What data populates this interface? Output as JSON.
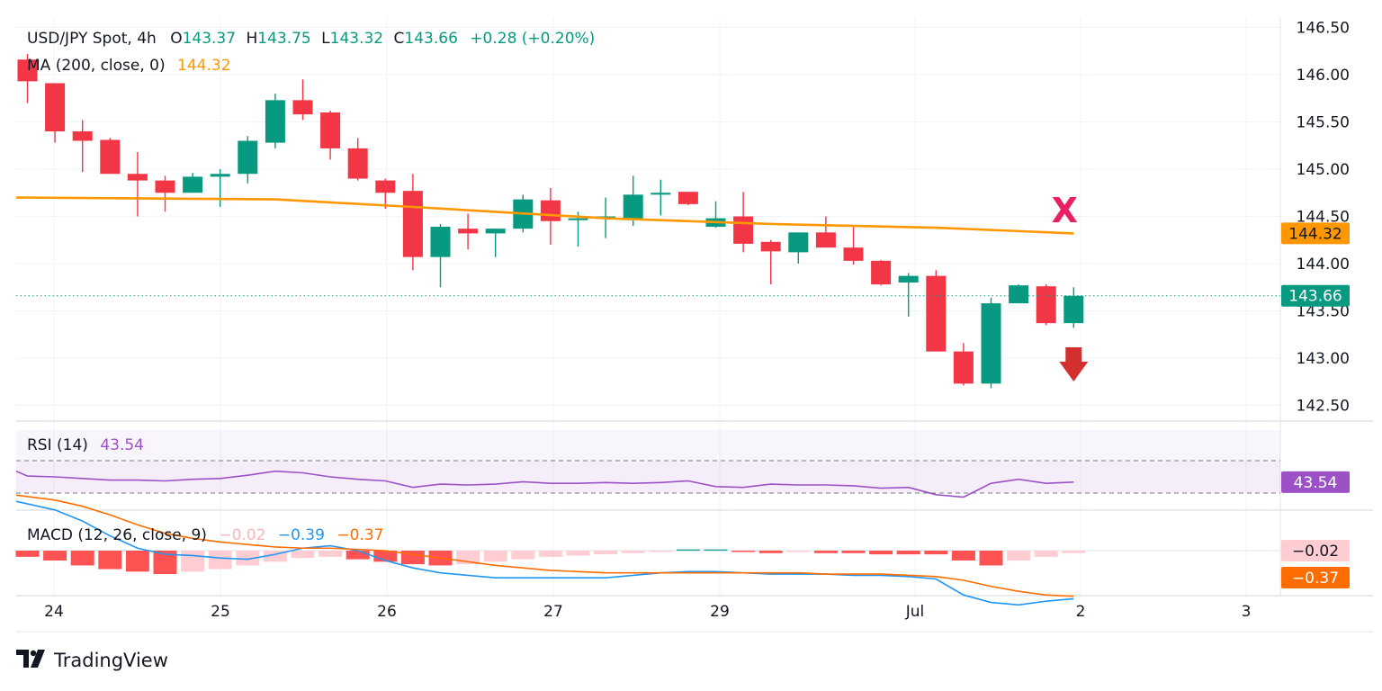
{
  "header": {
    "symbol": "USD/JPY Spot, 4h",
    "o_label": "O",
    "o_value": "143.37",
    "h_label": "H",
    "h_value": "143.75",
    "l_label": "L",
    "l_value": "143.32",
    "c_label": "C",
    "c_value": "143.66",
    "change": "+0.28 (+0.20%)"
  },
  "ma_legend": {
    "label": "MA (200, close, 0)",
    "value": "144.32"
  },
  "rsi_legend": {
    "label": "RSI (14)",
    "value": "43.54"
  },
  "macd_legend": {
    "label": "MACD (12, 26, close, 9)",
    "hist": "−0.02",
    "macd": "−0.39",
    "signal": "−0.37"
  },
  "footer": {
    "brand": "TradingView"
  },
  "colors": {
    "up": "#089981",
    "down": "#f23645",
    "ma": "#ff9800",
    "rsi": "#9c52c6",
    "macd": "#2196f3",
    "signal": "#ff6d00",
    "annotation": "#e91e63",
    "arrow": "#d32f2f"
  },
  "annotations": {
    "x_mark": "X",
    "arrow": "down-arrow"
  },
  "chart_data": [
    {
      "type": "candlestick",
      "title": "USD/JPY Spot, 4h",
      "x_labels": [
        "24",
        "25",
        "26",
        "27",
        "29",
        "Jul",
        "2",
        "3"
      ],
      "y_ticks": [
        "146.50",
        "146.00",
        "145.50",
        "145.00",
        "144.50",
        "144.00",
        "143.50",
        "143.00",
        "142.50"
      ],
      "ylim": [
        142.3,
        146.7
      ],
      "candles": [
        {
          "o": 146.16,
          "h": 146.22,
          "l": 145.7,
          "c": 145.93
        },
        {
          "o": 145.91,
          "h": 145.91,
          "l": 145.28,
          "c": 145.4
        },
        {
          "o": 145.4,
          "h": 145.52,
          "l": 144.97,
          "c": 145.3
        },
        {
          "o": 145.31,
          "h": 145.33,
          "l": 144.95,
          "c": 144.95
        },
        {
          "o": 144.95,
          "h": 145.18,
          "l": 144.5,
          "c": 144.88
        },
        {
          "o": 144.88,
          "h": 144.93,
          "l": 144.55,
          "c": 144.75
        },
        {
          "o": 144.75,
          "h": 144.96,
          "l": 144.75,
          "c": 144.92
        },
        {
          "o": 144.92,
          "h": 145.0,
          "l": 144.6,
          "c": 144.95
        },
        {
          "o": 144.95,
          "h": 145.35,
          "l": 144.85,
          "c": 145.3
        },
        {
          "o": 145.28,
          "h": 145.8,
          "l": 145.22,
          "c": 145.73
        },
        {
          "o": 145.73,
          "h": 145.95,
          "l": 145.52,
          "c": 145.58
        },
        {
          "o": 145.6,
          "h": 145.62,
          "l": 145.1,
          "c": 145.22
        },
        {
          "o": 145.22,
          "h": 145.33,
          "l": 144.88,
          "c": 144.9
        },
        {
          "o": 144.88,
          "h": 144.9,
          "l": 144.58,
          "c": 144.75
        },
        {
          "o": 144.77,
          "h": 144.95,
          "l": 143.93,
          "c": 144.07
        },
        {
          "o": 144.07,
          "h": 144.42,
          "l": 143.75,
          "c": 144.39
        },
        {
          "o": 144.37,
          "h": 144.53,
          "l": 144.15,
          "c": 144.32
        },
        {
          "o": 144.32,
          "h": 144.37,
          "l": 144.07,
          "c": 144.37
        },
        {
          "o": 144.37,
          "h": 144.73,
          "l": 144.33,
          "c": 144.68
        },
        {
          "o": 144.67,
          "h": 144.8,
          "l": 144.2,
          "c": 144.45
        },
        {
          "o": 144.46,
          "h": 144.55,
          "l": 144.18,
          "c": 144.48
        },
        {
          "o": 144.48,
          "h": 144.7,
          "l": 144.27,
          "c": 144.5
        },
        {
          "o": 144.47,
          "h": 144.93,
          "l": 144.4,
          "c": 144.73
        },
        {
          "o": 144.73,
          "h": 144.89,
          "l": 144.51,
          "c": 144.75
        },
        {
          "o": 144.76,
          "h": 144.76,
          "l": 144.62,
          "c": 144.63
        },
        {
          "o": 144.39,
          "h": 144.66,
          "l": 144.38,
          "c": 144.48
        },
        {
          "o": 144.5,
          "h": 144.76,
          "l": 144.12,
          "c": 144.21
        },
        {
          "o": 144.23,
          "h": 144.25,
          "l": 143.78,
          "c": 144.13
        },
        {
          "o": 144.12,
          "h": 144.33,
          "l": 144.0,
          "c": 144.33
        },
        {
          "o": 144.33,
          "h": 144.5,
          "l": 144.17,
          "c": 144.17
        },
        {
          "o": 144.17,
          "h": 144.4,
          "l": 143.99,
          "c": 144.03
        },
        {
          "o": 144.03,
          "h": 144.04,
          "l": 143.77,
          "c": 143.78
        },
        {
          "o": 143.8,
          "h": 143.9,
          "l": 143.44,
          "c": 143.87
        },
        {
          "o": 143.87,
          "h": 143.93,
          "l": 143.07,
          "c": 143.07
        },
        {
          "o": 143.07,
          "h": 143.16,
          "l": 142.71,
          "c": 142.73
        },
        {
          "o": 142.73,
          "h": 143.64,
          "l": 142.68,
          "c": 143.58
        },
        {
          "o": 143.58,
          "h": 143.78,
          "l": 143.58,
          "c": 143.77
        },
        {
          "o": 143.76,
          "h": 143.78,
          "l": 143.35,
          "c": 143.37
        },
        {
          "o": 143.37,
          "h": 143.75,
          "l": 143.32,
          "c": 143.66
        }
      ],
      "ma_200": [
        {
          "bar": 0,
          "value": 144.7
        },
        {
          "bar": 9,
          "value": 144.68
        },
        {
          "bar": 14,
          "value": 144.6
        },
        {
          "bar": 21,
          "value": 144.48
        },
        {
          "bar": 27,
          "value": 144.42
        },
        {
          "bar": 33,
          "value": 144.38
        },
        {
          "bar": 38,
          "value": 144.32
        }
      ],
      "last_price": 143.66,
      "price_tags": [
        "144.32",
        "143.66"
      ]
    },
    {
      "type": "line",
      "title": "RSI (14)",
      "bands": [
        30,
        70
      ],
      "ylim": [
        20,
        80
      ],
      "values": [
        57,
        51,
        50,
        48,
        46,
        46,
        45,
        47,
        48,
        52,
        57,
        55,
        50,
        47,
        45,
        37,
        41,
        40,
        41,
        44,
        42,
        42,
        43,
        42,
        43,
        45,
        38,
        37,
        41,
        40,
        40,
        39,
        36,
        37,
        28,
        25,
        42,
        47,
        42,
        43.54
      ],
      "last_tag": "43.54"
    },
    {
      "type": "bar+line",
      "title": "MACD (12, 26, close, 9)",
      "ylim": [
        -0.5,
        0.45
      ],
      "histogram": [
        -0.05,
        -0.08,
        -0.12,
        -0.15,
        -0.17,
        -0.19,
        -0.17,
        -0.15,
        -0.12,
        -0.09,
        -0.06,
        -0.05,
        -0.07,
        -0.09,
        -0.11,
        -0.12,
        -0.11,
        -0.09,
        -0.07,
        -0.05,
        -0.04,
        -0.03,
        -0.02,
        -0.01,
        0.01,
        0.01,
        -0.01,
        -0.02,
        -0.01,
        -0.02,
        -0.02,
        -0.03,
        -0.03,
        -0.03,
        -0.08,
        -0.12,
        -0.08,
        -0.05,
        -0.02
      ],
      "macd": [
        0.4,
        0.33,
        0.24,
        0.12,
        0.02,
        -0.03,
        -0.04,
        -0.06,
        -0.07,
        -0.03,
        0.02,
        0.04,
        0.0,
        -0.08,
        -0.14,
        -0.18,
        -0.2,
        -0.22,
        -0.22,
        -0.22,
        -0.22,
        -0.22,
        -0.2,
        -0.18,
        -0.17,
        -0.17,
        -0.18,
        -0.19,
        -0.19,
        -0.19,
        -0.2,
        -0.2,
        -0.21,
        -0.23,
        -0.36,
        -0.42,
        -0.44,
        -0.41,
        -0.39
      ],
      "signal": [
        0.45,
        0.41,
        0.36,
        0.29,
        0.21,
        0.14,
        0.1,
        0.07,
        0.05,
        0.03,
        0.02,
        0.02,
        0.01,
        0.0,
        -0.03,
        -0.06,
        -0.09,
        -0.12,
        -0.14,
        -0.16,
        -0.17,
        -0.18,
        -0.18,
        -0.18,
        -0.18,
        -0.18,
        -0.18,
        -0.18,
        -0.18,
        -0.19,
        -0.19,
        -0.19,
        -0.2,
        -0.21,
        -0.24,
        -0.29,
        -0.33,
        -0.36,
        -0.37
      ],
      "hist_tag": "−0.02",
      "signal_tag": "−0.37"
    }
  ]
}
